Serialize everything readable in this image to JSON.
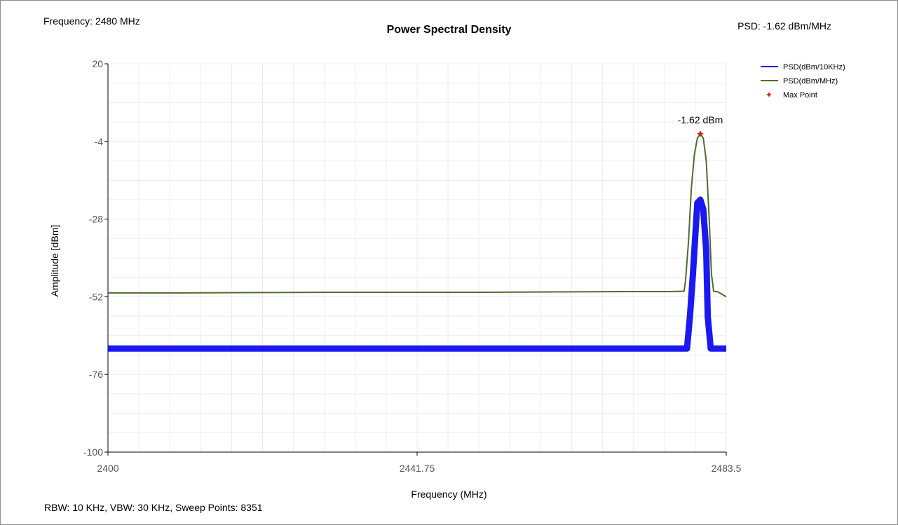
{
  "info": {
    "frequency": "Frequency: 2480 MHz",
    "psd": "PSD: -1.62 dBm/MHz",
    "settings": "RBW: 10 KHz,  VBW: 30 KHz,  Sweep Points: 8351"
  },
  "chart_data": {
    "type": "line",
    "title": "Power Spectral Density",
    "xlabel": "Frequency (MHz)",
    "ylabel": "Amplitude [dBm]",
    "xlim": [
      2400,
      2483.5
    ],
    "ylim": [
      -100,
      20
    ],
    "xticks": [
      2400,
      2441.75,
      2483.5
    ],
    "xtick_labels": [
      "2400",
      "2441.75",
      "2483.5"
    ],
    "yticks": [
      20,
      -4,
      -28,
      -52,
      -76,
      -100
    ],
    "ytick_labels": [
      "20",
      "-4",
      "-28",
      "-52",
      "-76",
      "-100"
    ],
    "grid": true,
    "legend_position": "top-right",
    "series": [
      {
        "name": "PSD(dBm/10KHz)",
        "color": "#0000ee",
        "x": [
          2400,
          2410,
          2420,
          2430,
          2440,
          2450,
          2460,
          2470,
          2476.0,
          2477.8,
          2478.2,
          2478.6,
          2479.0,
          2479.4,
          2479.6,
          2480.0,
          2480.4,
          2480.8,
          2481.0,
          2481.4,
          2481.8,
          2482.2,
          2483.5
        ],
        "y": [
          -68,
          -68,
          -68,
          -68,
          -68,
          -68,
          -68,
          -68,
          -68,
          -68,
          -68,
          -58,
          -45,
          -30,
          -23,
          -22,
          -25,
          -38,
          -58,
          -68,
          -68,
          -68,
          -68
        ]
      },
      {
        "name": "PSD(dBm/MHz)",
        "color": "#4e6e2a",
        "x": [
          2400,
          2410,
          2420,
          2430,
          2440,
          2450,
          2460,
          2470,
          2476.0,
          2477.8,
          2478.0,
          2478.4,
          2478.8,
          2479.2,
          2479.6,
          2480.0,
          2480.4,
          2480.8,
          2481.2,
          2481.5,
          2481.8,
          2482.4,
          2483.5
        ],
        "y": [
          -50.8,
          -50.8,
          -50.7,
          -50.6,
          -50.6,
          -50.6,
          -50.5,
          -50.4,
          -50.4,
          -50.3,
          -47,
          -35,
          -18,
          -8,
          -3,
          -1.62,
          -3,
          -10,
          -28,
          -45,
          -50.3,
          -50.5,
          -52
        ]
      }
    ],
    "max_point": {
      "name": "Max Point",
      "x": 2480,
      "y": -1.62,
      "label": "-1.62 dBm",
      "color": "#e8141e"
    }
  }
}
